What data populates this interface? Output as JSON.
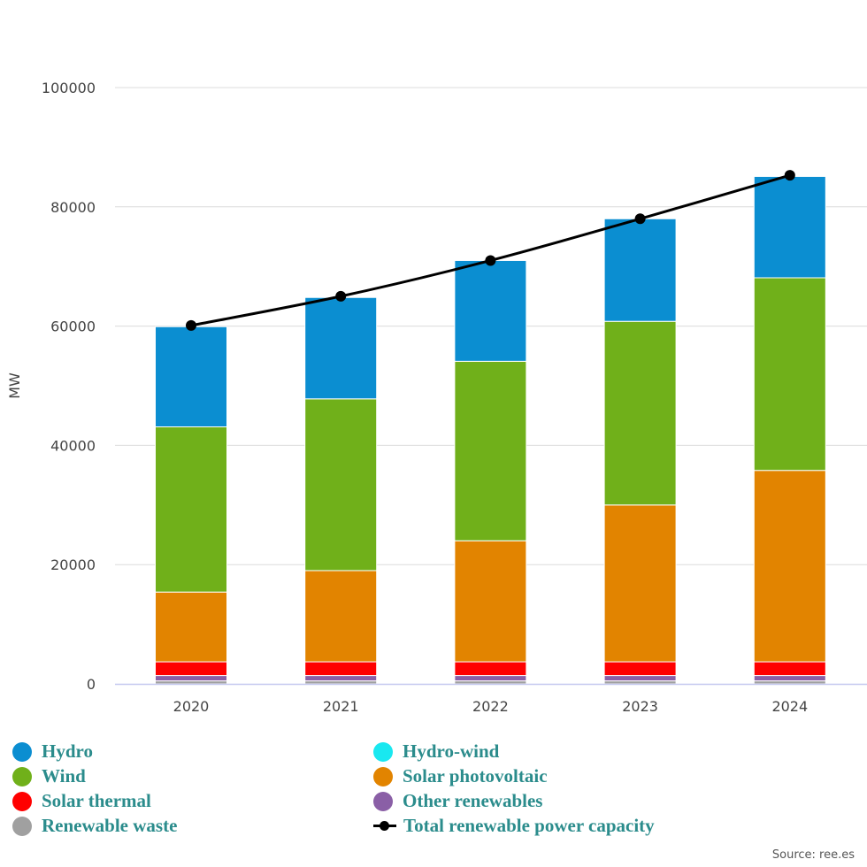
{
  "chart_data": {
    "type": "bar",
    "stacked": true,
    "ylabel": "MW",
    "xlabel": "",
    "ylim": [
      0,
      100000
    ],
    "yticks": [
      "0",
      "20000",
      "40000",
      "60000",
      "80000",
      "100000"
    ],
    "grid": true,
    "categories": [
      "2020",
      "2021",
      "2022",
      "2023",
      "2024"
    ],
    "series": [
      {
        "name": "Renewable waste",
        "color": "#a0a0a0",
        "values": [
          500,
          500,
          500,
          500,
          500
        ]
      },
      {
        "name": "Other renewables",
        "color": "#8a5fa6",
        "values": [
          900,
          900,
          900,
          900,
          900
        ]
      },
      {
        "name": "Solar thermal",
        "color": "#ff0000",
        "values": [
          2300,
          2300,
          2300,
          2300,
          2300
        ]
      },
      {
        "name": "Solar photovoltaic",
        "color": "#e28400",
        "values": [
          11700,
          15300,
          20300,
          26300,
          32100
        ]
      },
      {
        "name": "Wind",
        "color": "#70b01a",
        "values": [
          27700,
          28800,
          30100,
          30800,
          32300
        ]
      },
      {
        "name": "Hydro-wind",
        "color": "#19e8f0",
        "values": [
          0,
          0,
          0,
          0,
          0
        ]
      },
      {
        "name": "Hydro",
        "color": "#0b8ed1",
        "values": [
          16800,
          17000,
          16900,
          17200,
          17000
        ]
      }
    ],
    "line": {
      "name": "Total renewable power capacity",
      "color": "#000000",
      "values": [
        60100,
        65000,
        71000,
        78000,
        85300
      ]
    },
    "legend_position": "bottom"
  },
  "legend": [
    {
      "label": "Hydro",
      "color": "#0b8ed1",
      "symbol": "dot"
    },
    {
      "label": "Hydro-wind",
      "color": "#19e8f0",
      "symbol": "dot"
    },
    {
      "label": "Wind",
      "color": "#70b01a",
      "symbol": "dot"
    },
    {
      "label": "Solar photovoltaic",
      "color": "#e28400",
      "symbol": "dot"
    },
    {
      "label": "Solar thermal",
      "color": "#ff0000",
      "symbol": "dot"
    },
    {
      "label": "Other renewables",
      "color": "#8a5fa6",
      "symbol": "dot"
    },
    {
      "label": "Renewable waste",
      "color": "#a0a0a0",
      "symbol": "dot"
    },
    {
      "label": "Total renewable power capacity",
      "color": "#000000",
      "symbol": "line"
    }
  ],
  "source": "Source: ree.es"
}
